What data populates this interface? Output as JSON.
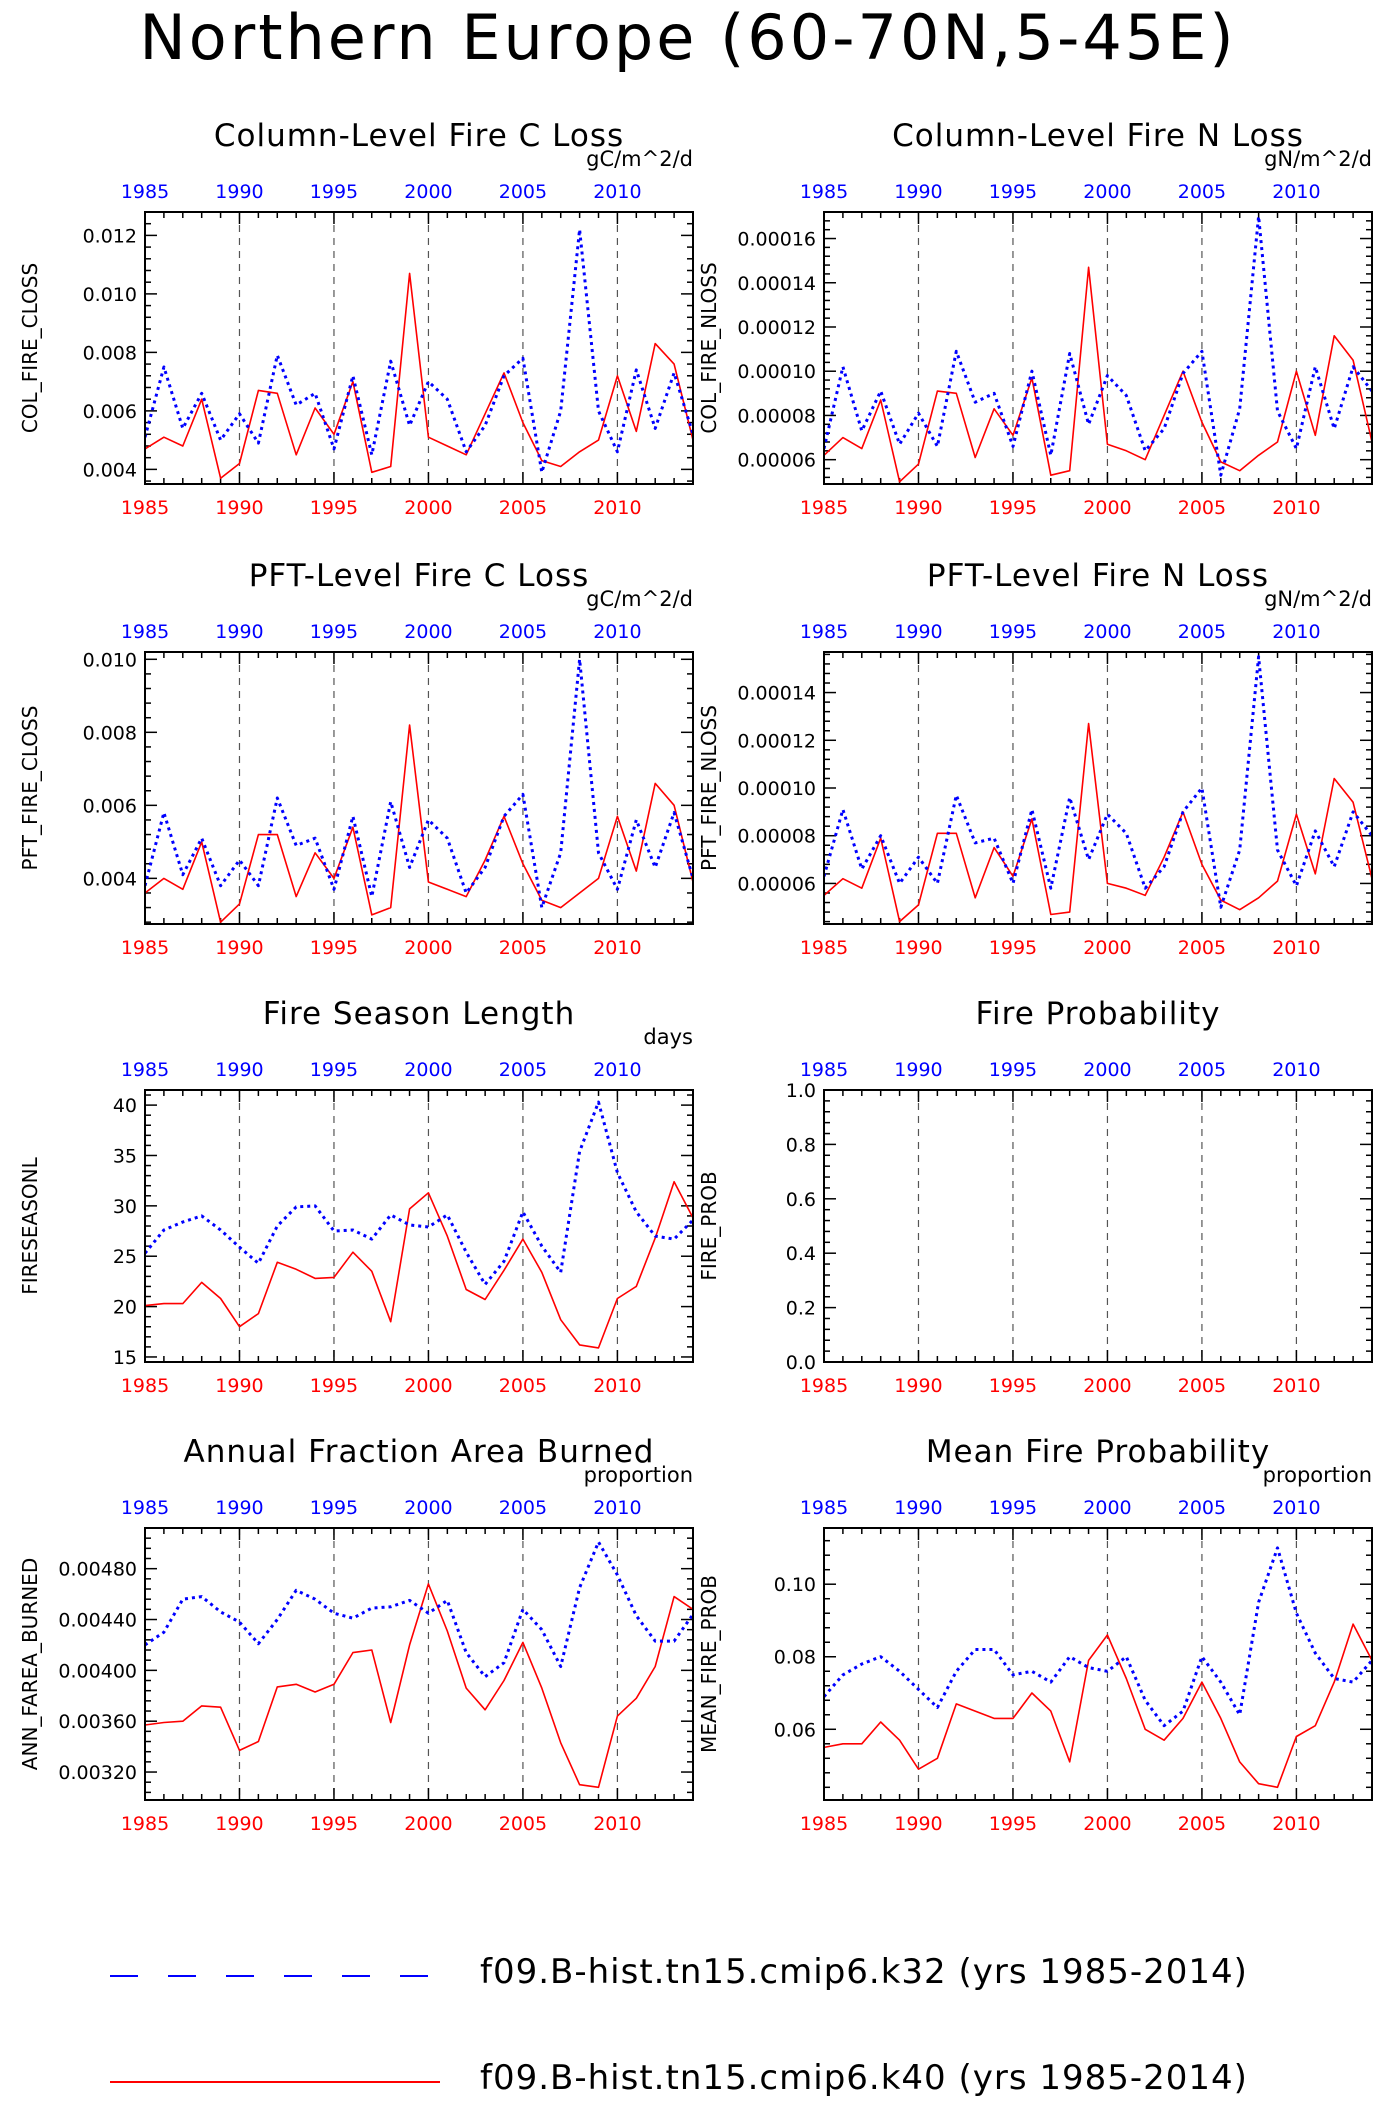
{
  "page": {
    "title": "Northern Europe (60-70N,5-45E)"
  },
  "colors": {
    "k32": "#0000ff",
    "k40": "#ff0000",
    "axis": "#000000",
    "grid": "#555555"
  },
  "legend": [
    {
      "key": "k32",
      "label": "f09.B-hist.tn15.cmip6.k32 (yrs 1985-2014)",
      "color": "#0000ff",
      "style": "dashed"
    },
    {
      "key": "k40",
      "label": "f09.B-hist.tn15.cmip6.k40 (yrs 1985-2014)",
      "color": "#ff0000",
      "style": "solid"
    }
  ],
  "chart_data": [
    {
      "id": "col-fire-closs",
      "type": "line",
      "title": "Column-Level Fire C Loss",
      "ylabel": "COL_FIRE_CLOSS",
      "units": "gC/m^2/d",
      "xlim": [
        1985,
        2014
      ],
      "ylim": [
        0.0035,
        0.0128
      ],
      "xticks": [
        1985,
        1990,
        1995,
        2000,
        2005,
        2010
      ],
      "yticks": [
        "0.004",
        "0.006",
        "0.008",
        "0.010",
        "0.012"
      ],
      "ytick_values": [
        0.004,
        0.006,
        0.008,
        0.01,
        0.012
      ],
      "series": [
        {
          "key": "k32",
          "values": [
            0.0051,
            0.0075,
            0.0054,
            0.0066,
            0.005,
            0.0059,
            0.0049,
            0.0079,
            0.0062,
            0.0066,
            0.0047,
            0.0072,
            0.0045,
            0.0077,
            0.0055,
            0.007,
            0.0064,
            0.0046,
            0.0055,
            0.0072,
            0.0078,
            0.0039,
            0.006,
            0.0122,
            0.006,
            0.0046,
            0.0074,
            0.0054,
            0.0073,
            0.0052
          ]
        },
        {
          "key": "k40",
          "values": [
            0.0047,
            0.0051,
            0.0048,
            0.0064,
            0.0037,
            0.0042,
            0.0067,
            0.0066,
            0.0045,
            0.0061,
            0.0052,
            0.007,
            0.0039,
            0.0041,
            0.0107,
            0.0051,
            0.0048,
            0.0045,
            0.0059,
            0.0073,
            0.0056,
            0.0043,
            0.0041,
            0.0046,
            0.005,
            0.0072,
            0.0053,
            0.0083,
            0.0076,
            0.005
          ]
        }
      ]
    },
    {
      "id": "col-fire-nloss",
      "type": "line",
      "title": "Column-Level Fire N Loss",
      "ylabel": "COL_FIRE_NLOSS",
      "units": "gN/m^2/d",
      "xlim": [
        1985,
        2014
      ],
      "ylim": [
        4.9e-05,
        0.000172
      ],
      "xticks": [
        1985,
        1990,
        1995,
        2000,
        2005,
        2010
      ],
      "yticks": [
        "0.00006",
        "0.00008",
        "0.00010",
        "0.00012",
        "0.00014",
        "0.00016"
      ],
      "ytick_values": [
        6e-05,
        8e-05,
        0.0001,
        0.00012,
        0.00014,
        0.00016
      ],
      "series": [
        {
          "key": "k32",
          "values": [
            6.5e-05,
            0.000102,
            7.3e-05,
            9.1e-05,
            6.7e-05,
            8.1e-05,
            6.6e-05,
            0.000109,
            8.6e-05,
            9e-05,
            6.6e-05,
            0.0001,
            6.2e-05,
            0.000108,
            7.6e-05,
            9.8e-05,
            8.9e-05,
            6.4e-05,
            7.4e-05,
            9.9e-05,
            0.000109,
            5.3e-05,
            8.3e-05,
            0.00017,
            8.2e-05,
            6.5e-05,
            0.000102,
            7.4e-05,
            0.000102,
            9.1e-05
          ]
        },
        {
          "key": "k40",
          "values": [
            6.2e-05,
            7e-05,
            6.5e-05,
            8.7e-05,
            5e-05,
            5.8e-05,
            9.1e-05,
            9e-05,
            6.1e-05,
            8.3e-05,
            7.1e-05,
            9.7e-05,
            5.3e-05,
            5.5e-05,
            0.000147,
            6.7e-05,
            6.4e-05,
            6e-05,
            8e-05,
            0.0001,
            7.7e-05,
            5.9e-05,
            5.5e-05,
            6.2e-05,
            6.8e-05,
            0.0001,
            7.1e-05,
            0.000116,
            0.000105,
            6.8e-05
          ]
        }
      ]
    },
    {
      "id": "pft-fire-closs",
      "type": "line",
      "title": "PFT-Level Fire C Loss",
      "ylabel": "PFT_FIRE_CLOSS",
      "units": "gC/m^2/d",
      "xlim": [
        1985,
        2014
      ],
      "ylim": [
        0.00275,
        0.0102
      ],
      "xticks": [
        1985,
        1990,
        1995,
        2000,
        2005,
        2010
      ],
      "yticks": [
        "0.004",
        "0.006",
        "0.008",
        "0.010"
      ],
      "ytick_values": [
        0.004,
        0.006,
        0.008,
        0.01
      ],
      "series": [
        {
          "key": "k32",
          "values": [
            0.0038,
            0.0058,
            0.0041,
            0.0051,
            0.0038,
            0.0045,
            0.0038,
            0.0062,
            0.0049,
            0.0051,
            0.0037,
            0.0057,
            0.0035,
            0.0061,
            0.0043,
            0.0056,
            0.0051,
            0.0036,
            0.0043,
            0.0057,
            0.0063,
            0.0032,
            0.0047,
            0.01,
            0.0047,
            0.0037,
            0.0056,
            0.0043,
            0.0058,
            0.004
          ]
        },
        {
          "key": "k40",
          "values": [
            0.0036,
            0.004,
            0.0037,
            0.005,
            0.0028,
            0.0033,
            0.0052,
            0.0052,
            0.0035,
            0.0047,
            0.004,
            0.0054,
            0.003,
            0.0032,
            0.0082,
            0.0039,
            0.0037,
            0.0035,
            0.0045,
            0.0057,
            0.0044,
            0.0034,
            0.0032,
            0.0036,
            0.004,
            0.0057,
            0.0042,
            0.0066,
            0.006,
            0.0039
          ]
        }
      ]
    },
    {
      "id": "pft-fire-nloss",
      "type": "line",
      "title": "PFT-Level Fire N Loss",
      "ylabel": "PFT_FIRE_NLOSS",
      "units": "gN/m^2/d",
      "xlim": [
        1985,
        2014
      ],
      "ylim": [
        4.3e-05,
        0.000157
      ],
      "xticks": [
        1985,
        1990,
        1995,
        2000,
        2005,
        2010
      ],
      "yticks": [
        "0.00006",
        "0.00008",
        "0.00010",
        "0.00012",
        "0.00014"
      ],
      "ytick_values": [
        6e-05,
        8e-05,
        0.0001,
        0.00012,
        0.00014
      ],
      "series": [
        {
          "key": "k32",
          "values": [
            6.3e-05,
            9.1e-05,
            6.6e-05,
            8e-05,
            6e-05,
            7.1e-05,
            6e-05,
            9.7e-05,
            7.7e-05,
            7.9e-05,
            6e-05,
            9.1e-05,
            5.8e-05,
            9.6e-05,
            7e-05,
            8.9e-05,
            8.1e-05,
            5.8e-05,
            6.7e-05,
            9e-05,
            0.0001,
            5e-05,
            7.4e-05,
            0.000155,
            7.4e-05,
            5.9e-05,
            8.2e-05,
            6.7e-05,
            9e-05,
            8e-05
          ]
        },
        {
          "key": "k40",
          "values": [
            5.5e-05,
            6.2e-05,
            5.8e-05,
            7.9e-05,
            4.4e-05,
            5.1e-05,
            8.1e-05,
            8.1e-05,
            5.4e-05,
            7.5e-05,
            6.3e-05,
            8.7e-05,
            4.7e-05,
            4.8e-05,
            0.000127,
            6e-05,
            5.8e-05,
            5.5e-05,
            7.1e-05,
            9e-05,
            6.8e-05,
            5.3e-05,
            4.9e-05,
            5.4e-05,
            6.1e-05,
            8.9e-05,
            6.4e-05,
            0.000104,
            9.4e-05,
            6.2e-05
          ]
        }
      ]
    },
    {
      "id": "fireseasonl",
      "type": "line",
      "title": "Fire Season Length",
      "ylabel": "FIRESEASONL",
      "units": "days",
      "xlim": [
        1985,
        2014
      ],
      "ylim": [
        14.5,
        41.5
      ],
      "xticks": [
        1985,
        1990,
        1995,
        2000,
        2005,
        2010
      ],
      "yticks": [
        "15",
        "20",
        "25",
        "30",
        "35",
        "40"
      ],
      "ytick_values": [
        15,
        20,
        25,
        30,
        35,
        40
      ],
      "series": [
        {
          "key": "k32",
          "values": [
            25.3,
            27.6,
            28.4,
            29.0,
            27.6,
            25.9,
            24.3,
            28.0,
            29.9,
            30.0,
            27.5,
            27.6,
            26.7,
            29.1,
            28.1,
            27.9,
            29.1,
            25.4,
            22.2,
            24.5,
            29.4,
            26.0,
            23.4,
            35.4,
            40.3,
            33.3,
            29.4,
            27.0,
            26.7,
            28.6
          ]
        },
        {
          "key": "k40",
          "values": [
            20.1,
            20.3,
            20.3,
            22.4,
            20.8,
            18.0,
            19.3,
            24.4,
            23.7,
            22.8,
            22.9,
            25.4,
            23.5,
            18.5,
            29.7,
            31.3,
            27.0,
            21.7,
            20.7,
            23.6,
            26.7,
            23.4,
            18.7,
            16.2,
            15.9,
            20.8,
            22.0,
            26.8,
            32.4,
            28.8
          ]
        }
      ]
    },
    {
      "id": "fire-prob",
      "type": "line",
      "title": "Fire Probability",
      "ylabel": "FIRE_PROB",
      "units": "",
      "xlim": [
        1985,
        2014
      ],
      "ylim": [
        0.0,
        1.0
      ],
      "xticks": [
        1985,
        1990,
        1995,
        2000,
        2005,
        2010
      ],
      "yticks": [
        "0.0",
        "0.2",
        "0.4",
        "0.6",
        "0.8",
        "1.0"
      ],
      "ytick_values": [
        0.0,
        0.2,
        0.4,
        0.6,
        0.8,
        1.0
      ],
      "series": []
    },
    {
      "id": "ann-farea-burned",
      "type": "line",
      "title": "Annual Fraction Area Burned",
      "ylabel": "ANN_FAREA_BURNED",
      "units": "proportion",
      "xlim": [
        1985,
        2014
      ],
      "ylim": [
        0.00298,
        0.00512
      ],
      "xticks": [
        1985,
        1990,
        1995,
        2000,
        2005,
        2010
      ],
      "yticks": [
        "0.00320",
        "0.00360",
        "0.00400",
        "0.00440",
        "0.00480"
      ],
      "ytick_values": [
        0.0032,
        0.0036,
        0.004,
        0.0044,
        0.0048
      ],
      "series": [
        {
          "key": "k32",
          "values": [
            0.0042,
            0.0043,
            0.00456,
            0.00458,
            0.00446,
            0.00438,
            0.00421,
            0.0044,
            0.00463,
            0.00456,
            0.00445,
            0.00441,
            0.00449,
            0.0045,
            0.00455,
            0.00445,
            0.00455,
            0.00414,
            0.00395,
            0.00406,
            0.00448,
            0.00432,
            0.00403,
            0.00465,
            0.00501,
            0.00475,
            0.00443,
            0.00423,
            0.00423,
            0.00444
          ]
        },
        {
          "key": "k40",
          "values": [
            0.00357,
            0.00359,
            0.0036,
            0.00372,
            0.00371,
            0.00337,
            0.00344,
            0.00387,
            0.00389,
            0.00383,
            0.00389,
            0.00414,
            0.00416,
            0.00359,
            0.0042,
            0.00468,
            0.00431,
            0.00386,
            0.00369,
            0.00392,
            0.00422,
            0.00386,
            0.00343,
            0.0031,
            0.00308,
            0.00364,
            0.00378,
            0.00403,
            0.00458,
            0.00448
          ]
        }
      ]
    },
    {
      "id": "mean-fire-prob",
      "type": "line",
      "title": "Mean Fire Probability",
      "ylabel": "MEAN_FIRE_PROB",
      "units": "proportion",
      "xlim": [
        1985,
        2014
      ],
      "ylim": [
        0.0405,
        0.1155
      ],
      "xticks": [
        1985,
        1990,
        1995,
        2000,
        2005,
        2010
      ],
      "yticks": [
        "0.06",
        "0.08",
        "0.10"
      ],
      "ytick_values": [
        0.06,
        0.08,
        0.1
      ],
      "series": [
        {
          "key": "k32",
          "values": [
            0.069,
            0.075,
            0.078,
            0.08,
            0.076,
            0.071,
            0.066,
            0.076,
            0.082,
            0.082,
            0.075,
            0.076,
            0.073,
            0.08,
            0.077,
            0.076,
            0.08,
            0.068,
            0.061,
            0.065,
            0.08,
            0.073,
            0.064,
            0.095,
            0.11,
            0.092,
            0.081,
            0.074,
            0.073,
            0.079
          ]
        },
        {
          "key": "k40",
          "values": [
            0.055,
            0.056,
            0.056,
            0.062,
            0.057,
            0.049,
            0.052,
            0.067,
            0.065,
            0.063,
            0.063,
            0.07,
            0.065,
            0.051,
            0.079,
            0.086,
            0.074,
            0.06,
            0.057,
            0.063,
            0.073,
            0.063,
            0.051,
            0.045,
            0.044,
            0.058,
            0.061,
            0.073,
            0.089,
            0.079
          ]
        }
      ]
    }
  ]
}
